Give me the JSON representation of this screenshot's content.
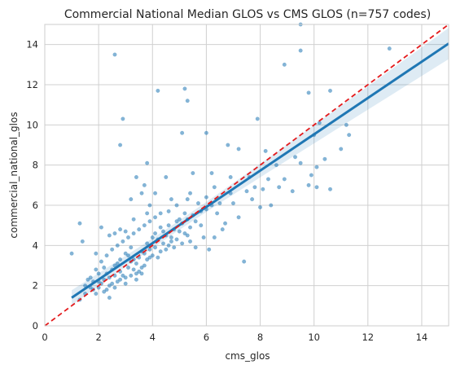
{
  "chart_data": {
    "type": "scatter",
    "title": "Commercial National Median GLOS vs CMS GLOS (n=757 codes)",
    "xlabel": "cms_glos",
    "ylabel": "commercial_national_glos",
    "xlim": [
      0,
      15
    ],
    "ylim": [
      0,
      15
    ],
    "xticks": [
      0,
      2,
      4,
      6,
      8,
      10,
      12,
      14
    ],
    "yticks": [
      0,
      2,
      4,
      6,
      8,
      10,
      12,
      14
    ],
    "grid": true,
    "legend": "none",
    "colors": {
      "points": "#1f77b4",
      "regression": "#1f77b4",
      "ci_band": "#1f77b4",
      "identity": "#e41a1c",
      "grid": "#d0d0d0",
      "spine": "#cccccc"
    },
    "series": [
      {
        "kind": "scatter",
        "points": [
          [
            2.6,
            13.5
          ],
          [
            9.5,
            15.0
          ],
          [
            9.5,
            13.7
          ],
          [
            12.8,
            13.8
          ],
          [
            8.9,
            13.0
          ],
          [
            10.6,
            11.7
          ],
          [
            9.8,
            11.6
          ],
          [
            4.2,
            11.7
          ],
          [
            5.2,
            11.8
          ],
          [
            5.3,
            11.2
          ],
          [
            2.9,
            10.3
          ],
          [
            7.9,
            10.3
          ],
          [
            10.2,
            10.1
          ],
          [
            11.2,
            10.0
          ],
          [
            5.1,
            9.6
          ],
          [
            6.0,
            9.6
          ],
          [
            10.0,
            9.5
          ],
          [
            11.3,
            9.5
          ],
          [
            2.8,
            9.0
          ],
          [
            6.8,
            9.0
          ],
          [
            3.8,
            8.1
          ],
          [
            7.2,
            8.8
          ],
          [
            8.2,
            8.7
          ],
          [
            9.3,
            8.4
          ],
          [
            10.4,
            8.3
          ],
          [
            11.0,
            8.8
          ],
          [
            8.6,
            8.0
          ],
          [
            9.5,
            8.1
          ],
          [
            10.1,
            7.9
          ],
          [
            3.4,
            7.4
          ],
          [
            3.7,
            7.0
          ],
          [
            4.5,
            7.4
          ],
          [
            5.5,
            7.6
          ],
          [
            6.2,
            7.6
          ],
          [
            6.9,
            7.4
          ],
          [
            7.6,
            7.4
          ],
          [
            8.3,
            7.3
          ],
          [
            8.9,
            7.3
          ],
          [
            9.9,
            7.5
          ],
          [
            10.1,
            6.9
          ],
          [
            3.2,
            6.3
          ],
          [
            3.6,
            6.6
          ],
          [
            3.9,
            6.0
          ],
          [
            4.7,
            6.3
          ],
          [
            5.4,
            6.6
          ],
          [
            6.0,
            6.4
          ],
          [
            6.9,
            6.6
          ],
          [
            7.5,
            6.7
          ],
          [
            8.1,
            6.8
          ],
          [
            8.7,
            6.9
          ],
          [
            7.0,
            6.1
          ],
          [
            7.7,
            6.3
          ],
          [
            8.4,
            6.0
          ],
          [
            6.4,
            5.6
          ],
          [
            7.2,
            5.4
          ],
          [
            5.8,
            5.0
          ],
          [
            6.6,
            4.8
          ],
          [
            7.4,
            3.2
          ],
          [
            6.3,
            4.4
          ],
          [
            5.6,
            3.9
          ],
          [
            1.0,
            3.6
          ],
          [
            1.3,
            5.1
          ],
          [
            2.1,
            4.9
          ],
          [
            2.4,
            4.5
          ],
          [
            1.9,
            3.6
          ],
          [
            1.6,
            2.3
          ],
          [
            1.7,
            1.9
          ],
          [
            1.9,
            1.6
          ],
          [
            2.4,
            1.4
          ],
          [
            1.3,
            1.3
          ],
          [
            1.5,
            1.6
          ],
          [
            1.8,
            2.2
          ],
          [
            2.0,
            1.9
          ],
          [
            2.2,
            2.3
          ],
          [
            2.3,
            1.8
          ],
          [
            2.5,
            2.1
          ],
          [
            2.6,
            2.5
          ],
          [
            2.7,
            2.2
          ],
          [
            2.8,
            2.7
          ],
          [
            3.0,
            2.4
          ],
          [
            3.1,
            2.9
          ],
          [
            3.2,
            3.2
          ],
          [
            3.3,
            2.8
          ],
          [
            3.4,
            3.1
          ],
          [
            3.5,
            3.4
          ],
          [
            3.6,
            2.9
          ],
          [
            3.7,
            3.6
          ],
          [
            3.8,
            3.3
          ],
          [
            3.9,
            3.8
          ],
          [
            4.0,
            3.5
          ],
          [
            4.1,
            3.9
          ],
          [
            4.2,
            4.3
          ],
          [
            4.3,
            3.7
          ],
          [
            4.4,
            4.1
          ],
          [
            4.5,
            4.5
          ],
          [
            4.6,
            4.0
          ],
          [
            4.7,
            4.4
          ],
          [
            4.8,
            4.8
          ],
          [
            4.9,
            4.3
          ],
          [
            5.0,
            4.7
          ],
          [
            5.1,
            5.1
          ],
          [
            5.2,
            4.6
          ],
          [
            5.3,
            5.3
          ],
          [
            5.4,
            4.9
          ],
          [
            5.5,
            5.5
          ],
          [
            5.6,
            5.2
          ],
          [
            5.8,
            5.7
          ],
          [
            6.0,
            5.8
          ],
          [
            6.2,
            6.0
          ],
          [
            6.5,
            6.1
          ],
          [
            2.0,
            2.6
          ],
          [
            2.2,
            2.9
          ],
          [
            2.4,
            2.0
          ],
          [
            2.6,
            3.0
          ],
          [
            2.8,
            3.3
          ],
          [
            3.0,
            3.6
          ],
          [
            3.2,
            3.9
          ],
          [
            3.4,
            2.6
          ],
          [
            3.6,
            3.7
          ],
          [
            3.8,
            4.1
          ],
          [
            4.0,
            4.4
          ],
          [
            4.2,
            3.4
          ],
          [
            4.4,
            4.7
          ],
          [
            4.6,
            5.0
          ],
          [
            4.8,
            3.9
          ],
          [
            5.0,
            5.3
          ],
          [
            5.2,
            5.6
          ],
          [
            5.4,
            4.2
          ],
          [
            2.1,
            2.1
          ],
          [
            2.3,
            2.6
          ],
          [
            2.5,
            2.8
          ],
          [
            2.7,
            3.1
          ],
          [
            2.9,
            2.5
          ],
          [
            3.1,
            3.5
          ],
          [
            3.3,
            3.3
          ],
          [
            3.5,
            2.7
          ],
          [
            3.7,
            3.0
          ],
          [
            3.9,
            3.4
          ],
          [
            4.1,
            4.6
          ],
          [
            4.3,
            4.9
          ],
          [
            4.5,
            3.8
          ],
          [
            4.7,
            4.2
          ],
          [
            4.9,
            5.2
          ],
          [
            5.1,
            4.1
          ],
          [
            5.3,
            4.5
          ],
          [
            1.5,
            2.0
          ],
          [
            1.7,
            2.4
          ],
          [
            1.9,
            2.8
          ],
          [
            2.1,
            3.2
          ],
          [
            2.3,
            3.5
          ],
          [
            2.5,
            3.8
          ],
          [
            2.7,
            4.0
          ],
          [
            2.9,
            4.2
          ],
          [
            3.1,
            4.4
          ],
          [
            3.3,
            4.6
          ],
          [
            3.5,
            4.8
          ],
          [
            3.7,
            5.0
          ],
          [
            3.9,
            5.2
          ],
          [
            4.1,
            5.4
          ],
          [
            4.3,
            5.6
          ],
          [
            1.8,
            1.8
          ],
          [
            2.0,
            2.2
          ],
          [
            2.2,
            1.7
          ],
          [
            2.4,
            2.4
          ],
          [
            2.6,
            1.9
          ],
          [
            2.8,
            2.3
          ],
          [
            3.0,
            2.1
          ],
          [
            3.2,
            2.5
          ],
          [
            3.4,
            2.3
          ],
          [
            3.6,
            2.6
          ],
          [
            9.2,
            6.7
          ],
          [
            9.8,
            7.0
          ],
          [
            10.6,
            6.8
          ],
          [
            8.0,
            5.9
          ],
          [
            7.8,
            6.9
          ],
          [
            6.7,
            5.1
          ],
          [
            5.9,
            4.4
          ],
          [
            6.1,
            3.8
          ],
          [
            5.7,
            6.1
          ],
          [
            6.3,
            6.9
          ],
          [
            4.6,
            5.7
          ],
          [
            4.9,
            6.0
          ],
          [
            5.3,
            6.3
          ],
          [
            3.8,
            5.6
          ],
          [
            4.1,
            6.6
          ],
          [
            3.3,
            5.3
          ],
          [
            3.0,
            4.7
          ],
          [
            2.8,
            4.8
          ],
          [
            2.6,
            4.6
          ],
          [
            1.4,
            4.2
          ]
        ]
      },
      {
        "kind": "regression",
        "x": [
          1.0,
          15.0
        ],
        "y": [
          1.4,
          14.05
        ]
      },
      {
        "kind": "identity",
        "x": [
          0,
          15
        ],
        "y": [
          0,
          15
        ]
      }
    ]
  }
}
